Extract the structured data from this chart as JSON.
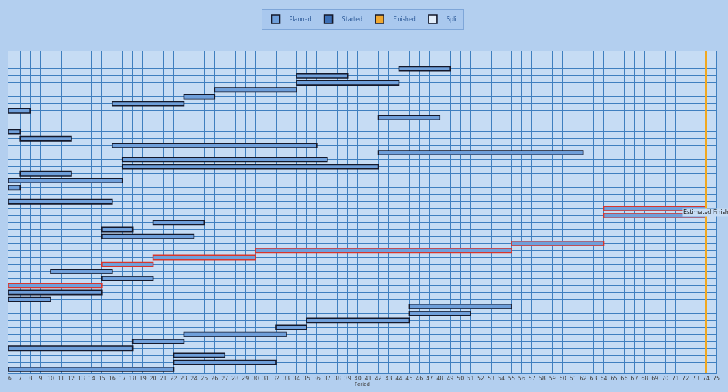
{
  "chart_data": {
    "type": "bar",
    "orientation": "horizontal",
    "stacked": false,
    "xlabel": "Period",
    "categories": [
      null,
      null,
      null,
      null,
      null,
      null,
      null,
      null,
      null,
      null,
      null,
      null,
      null,
      null,
      null,
      null,
      null,
      null,
      null,
      null,
      null,
      null,
      null,
      null,
      null,
      null,
      null,
      null,
      null,
      null,
      null,
      null,
      null,
      null,
      null,
      null,
      null,
      null,
      null,
      null,
      null,
      null,
      null,
      null,
      null,
      null
    ],
    "series": [
      {
        "name": "Planned",
        "color": "#6f9fda",
        "base": [
          null,
          null,
          44,
          34,
          34,
          26,
          23,
          16,
          5.85,
          42,
          null,
          5.85,
          7,
          16,
          42,
          17,
          17,
          7,
          5.85,
          5.85,
          null,
          5.85,
          null,
          null,
          20,
          15,
          15,
          null,
          null,
          null,
          null,
          10,
          15,
          null,
          5.85,
          5.85,
          45,
          45,
          35,
          32,
          23,
          18,
          5.85,
          22,
          22,
          5.85
        ],
        "values": [
          null,
          null,
          5,
          5,
          10,
          8,
          3,
          7,
          2.15,
          6,
          null,
          1.15,
          5,
          20,
          20,
          20,
          25,
          5,
          11.15,
          1.15,
          null,
          10.15,
          null,
          null,
          5,
          3,
          9,
          null,
          null,
          null,
          null,
          6,
          5,
          null,
          9.15,
          4.15,
          10,
          6,
          10,
          3,
          10,
          5,
          12.15,
          5,
          10,
          16.15
        ]
      },
      {
        "type": "bar",
        "color": "#d9342b",
        "base": [
          null,
          null,
          null,
          null,
          null,
          null,
          null,
          null,
          null,
          null,
          null,
          null,
          null,
          null,
          null,
          null,
          null,
          null,
          null,
          null,
          null,
          null,
          64,
          64,
          null,
          null,
          null,
          55,
          30,
          20,
          15,
          null,
          null,
          5.85,
          null,
          null,
          null,
          null,
          null,
          null,
          null,
          null,
          null,
          null,
          null,
          null
        ],
        "values": [
          null,
          null,
          null,
          null,
          null,
          null,
          null,
          null,
          null,
          null,
          null,
          null,
          null,
          null,
          null,
          null,
          null,
          null,
          null,
          null,
          null,
          null,
          10,
          10,
          null,
          null,
          null,
          9,
          25,
          10,
          5,
          null,
          null,
          9.15,
          null,
          null,
          null,
          null,
          null,
          null,
          null,
          null,
          null,
          null,
          null,
          null
        ]
      },
      {
        "name": "Started",
        "color": "#3b6fb6",
        "values": [
          null,
          null,
          null,
          null,
          null,
          null,
          null,
          null,
          null,
          null,
          null,
          null,
          null,
          null,
          null,
          null,
          null,
          null,
          null,
          null,
          null,
          null,
          null,
          null,
          null,
          null,
          null,
          null,
          null,
          null,
          null,
          null,
          null,
          null,
          null,
          null,
          null,
          null,
          null,
          null,
          null,
          null,
          null,
          null,
          null,
          null
        ]
      },
      {
        "name": "Finished",
        "color": "#f0a830",
        "values": [
          null,
          null,
          null,
          null,
          null,
          null,
          null,
          null,
          null,
          null,
          null,
          null,
          null,
          null,
          null,
          null,
          null,
          null,
          null,
          null,
          null,
          null,
          null,
          null,
          null,
          null,
          null,
          null,
          null,
          null,
          null,
          null,
          null,
          null,
          null,
          null,
          null,
          null,
          null,
          null,
          null,
          null,
          null,
          null,
          null,
          null
        ]
      },
      {
        "name": "Split",
        "color": "#e3eefa",
        "values": [
          null,
          null,
          null,
          null,
          null,
          null,
          null,
          null,
          null,
          null,
          null,
          null,
          null,
          null,
          null,
          null,
          null,
          null,
          null,
          null,
          null,
          null,
          null,
          null,
          null,
          null,
          null,
          null,
          null,
          null,
          null,
          null,
          null,
          null,
          null,
          null,
          null,
          null,
          null,
          null,
          null,
          null,
          null,
          null,
          null,
          null
        ]
      }
    ],
    "xlim": [
      5.85,
      75
    ],
    "xticks": [
      6,
      7,
      8,
      9,
      10,
      11,
      12,
      13,
      14,
      15,
      16,
      17,
      18,
      19,
      20,
      21,
      22,
      23,
      24,
      25,
      26,
      27,
      28,
      29,
      30,
      31,
      32,
      33,
      34,
      35,
      36,
      37,
      38,
      39,
      40,
      41,
      42,
      43,
      44,
      45,
      46,
      47,
      48,
      49,
      50,
      51,
      52,
      53,
      54,
      55,
      56,
      57,
      58,
      59,
      60,
      61,
      62,
      63,
      64,
      65,
      66,
      67,
      68,
      69,
      70,
      71,
      72,
      73,
      74,
      75
    ],
    "ref_lines": [
      {
        "axis": "x",
        "value": 74,
        "label": "Estimated Finish",
        "color": "#f0a820"
      }
    ],
    "grid": true,
    "legend": "top",
    "tick_labels": "x"
  }
}
